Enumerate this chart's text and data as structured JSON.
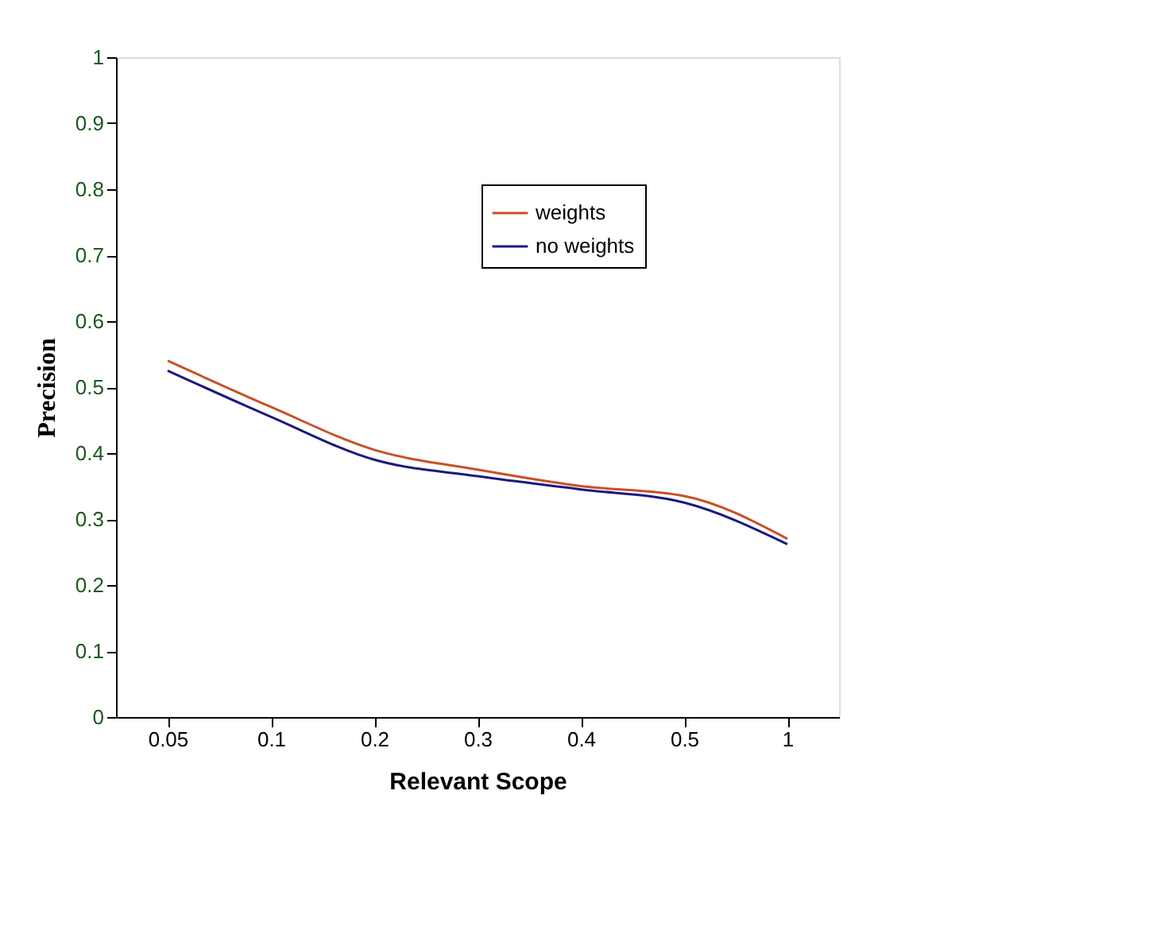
{
  "chart_data": {
    "type": "line",
    "xlabel": "Relevant Scope",
    "ylabel": "Precision",
    "categories": [
      "0.05",
      "0.1",
      "0.2",
      "0.3",
      "0.4",
      "0.5",
      "1"
    ],
    "series": [
      {
        "name": "weights",
        "color": "#c8502a",
        "values": [
          0.54,
          0.47,
          0.405,
          0.375,
          0.35,
          0.335,
          0.27
        ]
      },
      {
        "name": "no weights",
        "color": "#1a1a80",
        "values": [
          0.525,
          0.455,
          0.39,
          0.365,
          0.345,
          0.325,
          0.262
        ]
      }
    ],
    "ylim": [
      0,
      1
    ],
    "yticks": [
      0,
      0.1,
      0.2,
      0.3,
      0.4,
      0.5,
      0.6,
      0.7,
      0.8,
      0.9,
      1
    ],
    "grid": false,
    "legend": "top right",
    "marker": "none",
    "line_style": "solid"
  }
}
